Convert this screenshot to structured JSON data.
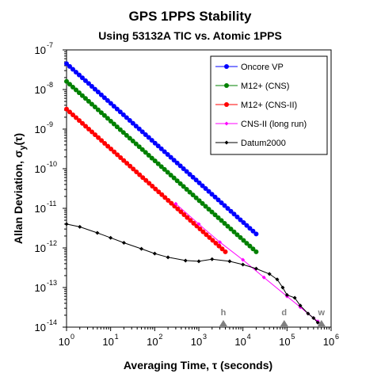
{
  "chart_data": {
    "type": "scatter",
    "title": "GPS 1PPS Stability",
    "subtitle": "Using 53132A TIC vs. Atomic 1PPS",
    "xlabel": "Averaging Time, τ (seconds)",
    "ylabel": "Allan Deviation, σy(τ)",
    "ylabel_parts": {
      "pre": "Allan Deviation, σ",
      "sub": "y",
      "post": "(τ)"
    },
    "x_scale": "log",
    "y_scale": "log",
    "xlim": [
      1,
      1000000
    ],
    "ylim": [
      1e-14,
      1e-07
    ],
    "x_tick_exponents": [
      0,
      1,
      2,
      3,
      4,
      5,
      6
    ],
    "y_tick_exponents": [
      -14,
      -13,
      -12,
      -11,
      -10,
      -9,
      -8,
      -7
    ],
    "tick_base": "10",
    "grid": false,
    "legend_position": "top-right",
    "series": [
      {
        "name": "Oncore VP",
        "color": "#0000ff",
        "marker": "circle",
        "x_range": [
          1,
          20000
        ],
        "y_at_x1": 4.5e-08,
        "slope": -1.0
      },
      {
        "name": "M12+ (CNS)",
        "color": "#008000",
        "marker": "circle",
        "x_range": [
          1,
          20000
        ],
        "y_at_x1": 1.6e-08,
        "slope": -1.0
      },
      {
        "name": "M12+ (CNS-II)",
        "color": "#ff0000",
        "marker": "circle",
        "x_range": [
          1,
          4000
        ],
        "y_at_x1": 3.2e-09,
        "slope": -1.0
      },
      {
        "name": "CNS-II (long run)",
        "color": "#ff00ff",
        "marker": "diamond",
        "x": [
          300,
          1000,
          3000,
          10000,
          30000,
          100000,
          200000,
          300000,
          400000,
          500000
        ],
        "y": [
          1.3e-11,
          4e-12,
          1.4e-12,
          5e-13,
          1.8e-13,
          6e-14,
          3.2e-14,
          2.2e-14,
          1.7e-14,
          1.4e-14
        ]
      },
      {
        "name": "Datum2000",
        "color": "#000000",
        "marker": "diamond",
        "x": [
          1,
          2,
          5,
          10,
          20,
          50,
          100,
          200,
          500,
          1000,
          2000,
          5000,
          10000,
          20000,
          40000,
          60000,
          80000,
          100000,
          150000,
          200000,
          300000,
          400000,
          500000
        ],
        "y": [
          4e-12,
          3.4e-12,
          2.4e-12,
          1.8e-12,
          1.35e-12,
          9.5e-13,
          7.2e-13,
          5.8e-13,
          4.8e-13,
          4.6e-13,
          5.2e-13,
          4.6e-13,
          3.8e-13,
          3e-13,
          2.2e-13,
          1.6e-13,
          1e-13,
          6.5e-14,
          5.5e-14,
          3.5e-14,
          2.2e-14,
          1.7e-14,
          1.3e-14
        ]
      }
    ],
    "annotations": [
      {
        "label": "h",
        "x": 3600
      },
      {
        "label": "d",
        "x": 86400
      },
      {
        "label": "w",
        "x": 604800
      }
    ]
  }
}
